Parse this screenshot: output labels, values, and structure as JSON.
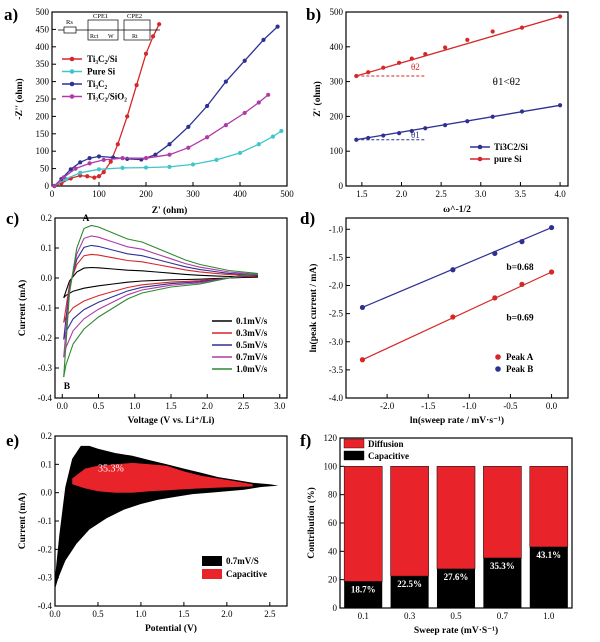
{
  "figure": {
    "panels": [
      "a)",
      "b)",
      "c)",
      "d)",
      "e)",
      "f)"
    ]
  },
  "chart_data": [
    {
      "id": "a",
      "type": "line",
      "xlabel": "Z' (ohm)",
      "ylabel": "-Z'' (ohm)",
      "xlim": [
        0,
        500
      ],
      "ylim": [
        0,
        500
      ],
      "xticks": [
        0,
        100,
        200,
        300,
        400,
        500
      ],
      "yticks": [
        0,
        50,
        100,
        150,
        200,
        250,
        300,
        350,
        400,
        450,
        500
      ],
      "circuit_labels": [
        "Rs",
        "CPE1",
        "CPE2",
        "Rct",
        "W",
        "Rt"
      ],
      "series": [
        {
          "name": "Ti3C2/Si",
          "color": "#d62728",
          "x": [
            5,
            20,
            40,
            60,
            75,
            90,
            100,
            110,
            125,
            140,
            160,
            180,
            200,
            215,
            228
          ],
          "y": [
            0,
            8,
            22,
            30,
            28,
            24,
            28,
            40,
            70,
            120,
            200,
            290,
            380,
            430,
            465
          ]
        },
        {
          "name": "Pure Si",
          "color": "#3ec6c9",
          "x": [
            5,
            30,
            60,
            100,
            150,
            200,
            250,
            300,
            350,
            400,
            440,
            470,
            488
          ],
          "y": [
            0,
            20,
            38,
            48,
            52,
            53,
            55,
            62,
            75,
            95,
            120,
            142,
            158
          ]
        },
        {
          "name": "Ti3C2",
          "color": "#2e3192",
          "x": [
            5,
            20,
            40,
            60,
            80,
            100,
            130,
            160,
            190,
            220,
            250,
            290,
            330,
            370,
            410,
            450,
            480
          ],
          "y": [
            0,
            20,
            48,
            68,
            80,
            85,
            82,
            78,
            76,
            90,
            120,
            170,
            230,
            300,
            360,
            420,
            458
          ]
        },
        {
          "name": "Ti3C2/SiO2",
          "color": "#b03aa8",
          "x": [
            5,
            25,
            50,
            80,
            110,
            150,
            200,
            250,
            290,
            330,
            370,
            410,
            440,
            460
          ],
          "y": [
            0,
            25,
            50,
            65,
            75,
            80,
            80,
            90,
            110,
            140,
            175,
            210,
            240,
            262
          ]
        }
      ]
    },
    {
      "id": "b",
      "type": "line",
      "xlabel": "ω^-1/2",
      "ylabel": "Z' (ohm)",
      "xlim": [
        1.3,
        4.1
      ],
      "ylim": [
        0,
        500
      ],
      "xticks": [
        1.5,
        2.0,
        2.5,
        3.0,
        3.5,
        4.0
      ],
      "yticks": [
        0,
        100,
        200,
        300,
        400,
        500
      ],
      "annotations": [
        "θ1<θ2",
        "θ2",
        "θ1"
      ],
      "series": [
        {
          "name": "Ti3C2/Si",
          "color": "#2e3192",
          "x": [
            1.43,
            1.58,
            1.77,
            1.97,
            2.13,
            2.3,
            2.55,
            2.83,
            3.15,
            3.52,
            4.0
          ],
          "y": [
            133,
            138,
            145,
            152,
            158,
            166,
            175,
            186,
            199,
            214,
            232
          ]
        },
        {
          "name": "pure Si",
          "color": "#d62728",
          "x": [
            1.43,
            1.58,
            1.77,
            1.97,
            2.13,
            2.3,
            2.55,
            2.83,
            3.15,
            3.52,
            4.0
          ],
          "y": [
            316,
            327,
            340,
            354,
            366,
            379,
            398,
            420,
            444,
            455,
            487
          ]
        }
      ]
    },
    {
      "id": "c",
      "type": "line",
      "xlabel": "Voltage (V vs. Li⁺/Li)",
      "ylabel": "Current (mA)",
      "xlim": [
        -0.1,
        3.1
      ],
      "ylim": [
        -0.4,
        0.2
      ],
      "xticks": [
        0.0,
        0.5,
        1.0,
        1.5,
        2.0,
        2.5,
        3.0
      ],
      "yticks": [
        0.2,
        0.1,
        0.0,
        -0.1,
        -0.2,
        -0.3,
        -0.4
      ],
      "annotations": [
        "A",
        "B"
      ],
      "series": [
        {
          "name": "0.1mV/s",
          "color": "#000000",
          "scale": 0.2
        },
        {
          "name": "0.3mV/s",
          "color": "#d62728",
          "scale": 0.45
        },
        {
          "name": "0.5mV/s",
          "color": "#2e3192",
          "scale": 0.62
        },
        {
          "name": "0.7mV/s",
          "color": "#b03aa8",
          "scale": 0.8
        },
        {
          "name": "1.0mV/s",
          "color": "#2d8a2d",
          "scale": 1.0
        }
      ],
      "reference_loop_1mVs": {
        "x_ox": [
          0.02,
          0.1,
          0.2,
          0.3,
          0.4,
          0.5,
          0.7,
          0.9,
          1.1,
          1.3,
          1.5,
          1.7,
          1.9,
          2.1,
          2.3,
          2.5,
          2.7
        ],
        "y_ox": [
          -0.33,
          -0.05,
          0.1,
          0.165,
          0.175,
          0.17,
          0.15,
          0.13,
          0.12,
          0.1,
          0.08,
          0.06,
          0.045,
          0.035,
          0.025,
          0.02,
          0.015
        ],
        "x_red": [
          2.7,
          2.5,
          2.3,
          2.1,
          1.9,
          1.7,
          1.5,
          1.3,
          1.1,
          0.9,
          0.7,
          0.5,
          0.3,
          0.15,
          0.05,
          0.02
        ],
        "y_red": [
          0.015,
          0.01,
          0.0,
          -0.01,
          -0.02,
          -0.025,
          -0.03,
          -0.04,
          -0.05,
          -0.07,
          -0.1,
          -0.13,
          -0.17,
          -0.22,
          -0.29,
          -0.33
        ]
      }
    },
    {
      "id": "d",
      "type": "scatter",
      "xlabel": "ln(sweep rate / mV·s⁻¹)",
      "ylabel": "ln(peak current / mA)",
      "xlim": [
        -2.5,
        0.2
      ],
      "ylim": [
        -4.0,
        -0.8
      ],
      "xticks": [
        -2.0,
        -1.5,
        -1.0,
        -0.5,
        0.0
      ],
      "yticks": [
        -1.0,
        -1.5,
        -2.0,
        -2.5,
        -3.0,
        -3.5,
        -4.0
      ],
      "annotations": [
        "b=0.68",
        "b=0.69"
      ],
      "series": [
        {
          "name": "Peak A",
          "color": "#d62728",
          "x": [
            -2.3,
            -1.2,
            -0.69,
            -0.36,
            0.0
          ],
          "y": [
            -3.32,
            -2.56,
            -2.22,
            -1.98,
            -1.76
          ]
        },
        {
          "name": "Peak B",
          "color": "#2e3192",
          "x": [
            -2.3,
            -1.2,
            -0.69,
            -0.36,
            0.0
          ],
          "y": [
            -2.39,
            -1.72,
            -1.43,
            -1.22,
            -0.97
          ]
        }
      ]
    },
    {
      "id": "e",
      "type": "area",
      "xlabel": "Potential (V)",
      "ylabel": "Current (mA)",
      "xlim": [
        0.0,
        2.7
      ],
      "ylim": [
        -0.4,
        0.2
      ],
      "xticks": [
        0.0,
        0.5,
        1.0,
        1.5,
        2.0,
        2.5
      ],
      "yticks": [
        0.2,
        0.1,
        0.0,
        -0.1,
        -0.2,
        -0.3,
        -0.4
      ],
      "annotation": "35.3%",
      "series": [
        {
          "name": "0.7mV/S",
          "color": "#000000"
        },
        {
          "name": "Capacitive",
          "color": "#e8232a"
        }
      ],
      "loop": {
        "x_top": [
          0.0,
          0.05,
          0.12,
          0.2,
          0.3,
          0.4,
          0.5,
          0.7,
          0.9,
          1.1,
          1.3,
          1.5,
          1.7,
          1.9,
          2.1,
          2.3,
          2.5,
          2.6
        ],
        "y_top": [
          -0.3,
          -0.15,
          0.02,
          0.12,
          0.165,
          0.165,
          0.155,
          0.14,
          0.13,
          0.115,
          0.1,
          0.085,
          0.07,
          0.055,
          0.045,
          0.035,
          0.03,
          0.025
        ],
        "x_bot": [
          2.6,
          2.4,
          2.2,
          2.0,
          1.8,
          1.6,
          1.4,
          1.2,
          1.0,
          0.8,
          0.6,
          0.4,
          0.25,
          0.12,
          0.04,
          0.0
        ],
        "y_bot": [
          0.025,
          0.02,
          0.01,
          0.005,
          0.0,
          -0.005,
          -0.015,
          -0.025,
          -0.04,
          -0.06,
          -0.09,
          -0.13,
          -0.18,
          -0.24,
          -0.3,
          -0.34
        ]
      },
      "capacitive": {
        "x_top": [
          0.2,
          0.35,
          0.5,
          0.7,
          0.9,
          1.1,
          1.3,
          1.5,
          1.7,
          1.9,
          2.1,
          2.3
        ],
        "y_top": [
          0.05,
          0.085,
          0.095,
          0.1,
          0.105,
          0.1,
          0.095,
          0.075,
          0.06,
          0.05,
          0.04,
          0.03
        ],
        "x_bot": [
          2.3,
          2.1,
          1.9,
          1.7,
          1.5,
          1.3,
          1.1,
          0.9,
          0.7,
          0.5,
          0.35,
          0.2
        ],
        "y_bot": [
          0.022,
          0.02,
          0.018,
          0.015,
          0.012,
          0.008,
          0.005,
          0.0,
          0.0,
          0.005,
          0.015,
          0.03
        ]
      }
    },
    {
      "id": "f",
      "type": "bar",
      "xlabel": "Sweep rate (mV·S⁻¹)",
      "ylabel": "Contribution (%)",
      "ylim": [
        0,
        120
      ],
      "yticks": [
        0,
        20,
        40,
        60,
        80,
        100,
        120
      ],
      "categories": [
        "0.1",
        "0.3",
        "0.5",
        "0.7",
        "1.0"
      ],
      "series": [
        {
          "name": "Capacitive",
          "color": "#000000",
          "values": [
            18.7,
            22.5,
            27.6,
            35.3,
            43.1
          ]
        },
        {
          "name": "Diffusion",
          "color": "#e8232a",
          "values": [
            81.3,
            77.5,
            72.4,
            64.7,
            56.9
          ]
        }
      ],
      "value_labels": [
        "18.7%",
        "22.5%",
        "27.6%",
        "35.3%",
        "43.1%"
      ]
    }
  ]
}
